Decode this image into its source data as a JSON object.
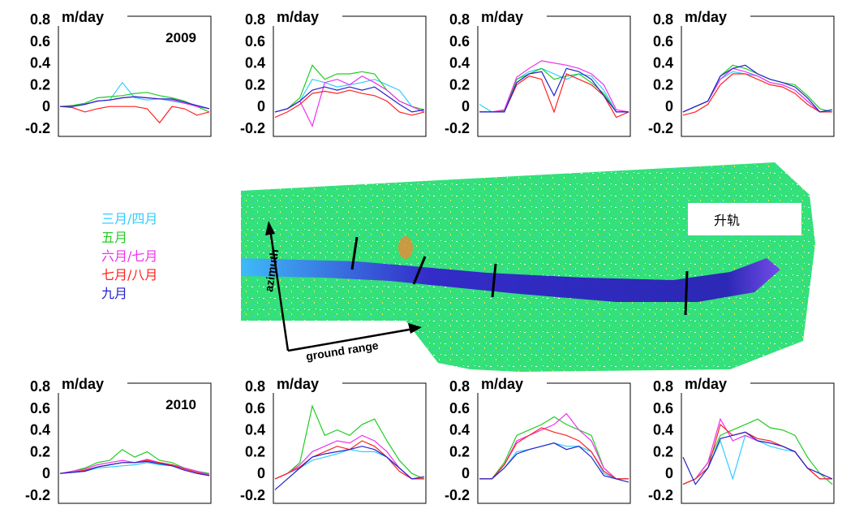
{
  "legend": [
    {
      "label": "三月/四月",
      "color": "#33ccff"
    },
    {
      "label": "五月",
      "color": "#22cc22"
    },
    {
      "label": "六月/七月",
      "color": "#ee33ee"
    },
    {
      "label": "七月/八月",
      "color": "#ff2222"
    },
    {
      "label": "九月",
      "color": "#2222cc"
    }
  ],
  "map": {
    "orbit_label": "升轨",
    "azimuth_label": "azimuth",
    "range_label": "ground range"
  },
  "chart_data": [
    {
      "type": "line",
      "unit": "m/day",
      "year_label": "2009",
      "ylim": [
        -0.2,
        0.8
      ],
      "y_ticks": [
        "0.8",
        "0.6",
        "0.4",
        "0.2",
        "0",
        "-0.2"
      ],
      "series": [
        {
          "name": "三月/四月",
          "values": [
            0.0,
            0.0,
            0.02,
            0.05,
            0.06,
            0.22,
            0.08,
            0.06,
            0.07,
            0.05,
            0.03,
            0.01,
            -0.02
          ]
        },
        {
          "name": "五月",
          "values": [
            0.0,
            0.01,
            0.03,
            0.08,
            0.09,
            0.1,
            0.12,
            0.13,
            0.1,
            0.08,
            0.05,
            0.0,
            -0.05
          ]
        },
        {
          "name": "六月/七月",
          "values": [
            0.0,
            0.0,
            0.02,
            0.05,
            0.06,
            0.08,
            0.09,
            0.08,
            0.07,
            0.06,
            0.03,
            0.0,
            -0.02
          ]
        },
        {
          "name": "七月/八月",
          "values": [
            0.0,
            -0.01,
            -0.05,
            -0.02,
            0.0,
            0.0,
            0.0,
            -0.02,
            -0.15,
            0.0,
            -0.02,
            -0.08,
            -0.05
          ]
        },
        {
          "name": "九月",
          "values": [
            0.0,
            0.0,
            0.02,
            0.05,
            0.06,
            0.08,
            0.09,
            0.08,
            0.07,
            0.07,
            0.04,
            0.01,
            -0.02
          ]
        }
      ]
    },
    {
      "type": "line",
      "unit": "m/day",
      "year_label": "",
      "ylim": [
        -0.2,
        0.8
      ],
      "y_ticks": [
        "0.8",
        "0.6",
        "0.4",
        "0.2",
        "0",
        "-0.2"
      ],
      "series": [
        {
          "name": "三月/四月",
          "values": [
            -0.05,
            -0.02,
            0.05,
            0.25,
            0.22,
            0.18,
            0.2,
            0.22,
            0.25,
            0.2,
            0.15,
            0.0,
            -0.05
          ]
        },
        {
          "name": "五月",
          "values": [
            -0.05,
            -0.02,
            0.08,
            0.38,
            0.25,
            0.3,
            0.3,
            0.32,
            0.3,
            0.15,
            0.05,
            0.0,
            -0.03
          ]
        },
        {
          "name": "六月/七月",
          "values": [
            -0.05,
            -0.02,
            0.05,
            -0.18,
            0.22,
            0.25,
            0.2,
            0.28,
            0.22,
            0.15,
            0.05,
            0.0,
            -0.05
          ]
        },
        {
          "name": "七月/八月",
          "values": [
            -0.1,
            -0.05,
            0.02,
            0.12,
            0.14,
            0.12,
            0.15,
            0.12,
            0.1,
            0.05,
            -0.05,
            -0.08,
            -0.05
          ]
        },
        {
          "name": "九月",
          "values": [
            -0.05,
            -0.02,
            0.05,
            0.15,
            0.18,
            0.15,
            0.18,
            0.15,
            0.18,
            0.1,
            0.02,
            -0.05,
            -0.03
          ]
        }
      ]
    },
    {
      "type": "line",
      "unit": "m/day",
      "year_label": "",
      "ylim": [
        -0.2,
        0.8
      ],
      "y_ticks": [
        "0.8",
        "0.6",
        "0.4",
        "0.2",
        "0",
        "-0.2"
      ],
      "series": [
        {
          "name": "三月/四月",
          "values": [
            0.02,
            -0.05,
            -0.05,
            0.25,
            0.32,
            0.35,
            0.3,
            0.25,
            0.3,
            0.28,
            0.15,
            -0.05,
            -0.05
          ]
        },
        {
          "name": "五月",
          "values": [
            -0.05,
            -0.05,
            -0.04,
            0.25,
            0.3,
            0.35,
            0.25,
            0.28,
            0.3,
            0.22,
            0.12,
            -0.05,
            -0.05
          ]
        },
        {
          "name": "六月/七月",
          "values": [
            -0.05,
            -0.05,
            -0.03,
            0.27,
            0.35,
            0.42,
            0.4,
            0.38,
            0.35,
            0.3,
            0.2,
            -0.03,
            -0.05
          ]
        },
        {
          "name": "七月/八月",
          "values": [
            -0.05,
            -0.05,
            -0.05,
            0.2,
            0.28,
            0.25,
            -0.05,
            0.3,
            0.25,
            0.2,
            0.1,
            -0.1,
            -0.05
          ]
        },
        {
          "name": "九月",
          "values": [
            -0.05,
            -0.05,
            -0.05,
            0.22,
            0.3,
            0.32,
            0.1,
            0.35,
            0.32,
            0.25,
            0.1,
            -0.05,
            -0.05
          ]
        }
      ]
    },
    {
      "type": "line",
      "unit": "m/day",
      "year_label": "",
      "ylim": [
        -0.2,
        0.8
      ],
      "y_ticks": [
        "0.8",
        "0.6",
        "0.4",
        "0.2",
        "0",
        "-0.2"
      ],
      "series": [
        {
          "name": "三月/四月",
          "values": [
            -0.05,
            0.0,
            0.05,
            0.25,
            0.32,
            0.3,
            0.28,
            0.22,
            0.2,
            0.15,
            0.05,
            -0.05,
            -0.03
          ]
        },
        {
          "name": "五月",
          "values": [
            -0.05,
            0.0,
            0.05,
            0.28,
            0.38,
            0.35,
            0.3,
            0.25,
            0.22,
            0.2,
            0.1,
            -0.02,
            -0.05
          ]
        },
        {
          "name": "六月/七月",
          "values": [
            -0.05,
            0.0,
            0.05,
            0.25,
            0.35,
            0.32,
            0.28,
            0.22,
            0.2,
            0.15,
            0.05,
            -0.05,
            -0.05
          ]
        },
        {
          "name": "七月/八月",
          "values": [
            -0.08,
            -0.05,
            0.02,
            0.2,
            0.3,
            0.3,
            0.25,
            0.2,
            0.18,
            0.12,
            0.02,
            -0.05,
            -0.05
          ]
        },
        {
          "name": "九月",
          "values": [
            -0.05,
            0.0,
            0.05,
            0.28,
            0.35,
            0.38,
            0.3,
            0.25,
            0.22,
            0.18,
            0.08,
            -0.05,
            -0.03
          ]
        }
      ]
    },
    {
      "type": "line",
      "unit": "m/day",
      "year_label": "2010",
      "ylim": [
        -0.2,
        0.8
      ],
      "y_ticks": [
        "0.8",
        "0.6",
        "0.4",
        "0.2",
        "0",
        "-0.2"
      ],
      "series": [
        {
          "name": "三月/四月",
          "values": [
            0.0,
            0.01,
            0.02,
            0.05,
            0.06,
            0.07,
            0.08,
            0.1,
            0.08,
            0.07,
            0.05,
            0.02,
            -0.02
          ]
        },
        {
          "name": "五月",
          "values": [
            0.0,
            0.02,
            0.05,
            0.1,
            0.12,
            0.22,
            0.15,
            0.2,
            0.12,
            0.1,
            0.05,
            0.02,
            0.0
          ]
        },
        {
          "name": "六月/七月",
          "values": [
            0.0,
            0.02,
            0.04,
            0.08,
            0.1,
            0.12,
            0.1,
            0.13,
            0.1,
            0.08,
            0.05,
            0.02,
            -0.01
          ]
        },
        {
          "name": "七月/八月",
          "values": [
            0.0,
            0.01,
            0.03,
            0.06,
            0.08,
            0.1,
            0.1,
            0.12,
            0.1,
            0.08,
            0.04,
            0.01,
            -0.02
          ]
        },
        {
          "name": "九月",
          "values": [
            0.0,
            0.01,
            0.02,
            0.06,
            0.08,
            0.1,
            0.1,
            0.11,
            0.09,
            0.07,
            0.03,
            0.0,
            -0.02
          ]
        }
      ]
    },
    {
      "type": "line",
      "unit": "m/day",
      "year_label": "",
      "ylim": [
        -0.2,
        0.8
      ],
      "y_ticks": [
        "0.8",
        "0.6",
        "0.4",
        "0.2",
        "0",
        "-0.2"
      ],
      "series": [
        {
          "name": "三月/四月",
          "values": [
            -0.05,
            0.0,
            0.05,
            0.12,
            0.15,
            0.18,
            0.22,
            0.2,
            0.2,
            0.15,
            0.05,
            -0.05,
            -0.05
          ]
        },
        {
          "name": "五月",
          "values": [
            -0.05,
            0.0,
            0.1,
            0.62,
            0.35,
            0.4,
            0.35,
            0.45,
            0.5,
            0.3,
            0.12,
            0.0,
            -0.05
          ]
        },
        {
          "name": "六月/七月",
          "values": [
            -0.05,
            0.0,
            0.08,
            0.2,
            0.25,
            0.3,
            0.28,
            0.35,
            0.3,
            0.2,
            0.05,
            -0.05,
            -0.05
          ]
        },
        {
          "name": "七月/八月",
          "values": [
            -0.05,
            0.0,
            0.06,
            0.15,
            0.2,
            0.25,
            0.22,
            0.3,
            0.25,
            0.15,
            0.02,
            -0.05,
            -0.05
          ]
        },
        {
          "name": "九月",
          "values": [
            -0.15,
            -0.05,
            0.05,
            0.15,
            0.18,
            0.2,
            0.22,
            0.25,
            0.22,
            0.15,
            0.05,
            -0.05,
            -0.03
          ]
        }
      ]
    },
    {
      "type": "line",
      "unit": "m/day",
      "year_label": "",
      "ylim": [
        -0.2,
        0.8
      ],
      "y_ticks": [
        "0.8",
        "0.6",
        "0.4",
        "0.2",
        "0",
        "-0.2"
      ],
      "series": [
        {
          "name": "三月/四月",
          "values": [
            -0.05,
            -0.05,
            0.05,
            0.2,
            0.22,
            0.25,
            0.28,
            0.25,
            0.25,
            0.2,
            0.0,
            -0.05,
            -0.05
          ]
        },
        {
          "name": "五月",
          "values": [
            -0.05,
            -0.05,
            0.1,
            0.35,
            0.4,
            0.45,
            0.52,
            0.45,
            0.4,
            0.35,
            0.05,
            -0.05,
            -0.05
          ]
        },
        {
          "name": "六月/七月",
          "values": [
            -0.05,
            -0.05,
            0.08,
            0.3,
            0.35,
            0.4,
            0.45,
            0.55,
            0.4,
            0.3,
            0.05,
            -0.05,
            -0.05
          ]
        },
        {
          "name": "七月/八月",
          "values": [
            -0.05,
            -0.05,
            0.08,
            0.28,
            0.35,
            0.42,
            0.38,
            0.35,
            0.3,
            0.2,
            0.02,
            -0.05,
            -0.05
          ]
        },
        {
          "name": "九月",
          "values": [
            -0.05,
            -0.05,
            0.05,
            0.18,
            0.22,
            0.25,
            0.28,
            0.22,
            0.25,
            0.15,
            -0.02,
            -0.05,
            -0.08
          ]
        }
      ]
    },
    {
      "type": "line",
      "unit": "m/day",
      "year_label": "",
      "ylim": [
        -0.2,
        0.8
      ],
      "y_ticks": [
        "0.8",
        "0.6",
        "0.4",
        "0.2",
        "0",
        "-0.2"
      ],
      "series": [
        {
          "name": "三月/四月",
          "values": [
            -0.1,
            -0.05,
            0.05,
            0.3,
            -0.05,
            0.35,
            0.3,
            0.25,
            0.22,
            0.2,
            0.05,
            -0.05,
            -0.05
          ]
        },
        {
          "name": "五月",
          "values": [
            -0.1,
            -0.05,
            0.1,
            0.35,
            0.4,
            0.45,
            0.5,
            0.42,
            0.4,
            0.35,
            0.15,
            0.0,
            -0.1
          ]
        },
        {
          "name": "六月/七月",
          "values": [
            -0.1,
            -0.05,
            0.1,
            0.5,
            0.3,
            0.35,
            0.3,
            0.28,
            0.25,
            0.2,
            0.05,
            -0.05,
            -0.05
          ]
        },
        {
          "name": "七月/八月",
          "values": [
            -0.1,
            -0.05,
            0.05,
            0.45,
            0.35,
            0.38,
            0.32,
            0.3,
            0.25,
            0.2,
            0.05,
            -0.05,
            -0.05
          ]
        },
        {
          "name": "九月",
          "values": [
            0.15,
            -0.1,
            0.05,
            0.32,
            0.35,
            0.38,
            0.3,
            0.28,
            0.25,
            0.2,
            0.05,
            0.0,
            -0.05
          ]
        }
      ]
    }
  ]
}
